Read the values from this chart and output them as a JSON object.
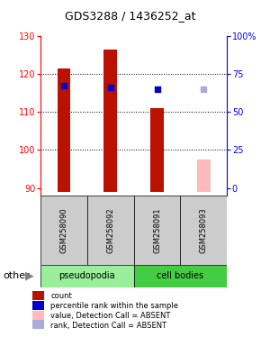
{
  "title": "GDS3288 / 1436252_at",
  "ylim": [
    88,
    130
  ],
  "yticks": [
    90,
    100,
    110,
    120,
    130
  ],
  "y2_tick_positions": [
    90,
    100,
    110,
    120,
    130
  ],
  "y2labels": [
    "0",
    "25",
    "50",
    "75",
    "100%"
  ],
  "samples": [
    "GSM258090",
    "GSM258092",
    "GSM258091",
    "GSM258093"
  ],
  "bar_values": [
    121.5,
    126.5,
    111.0,
    null
  ],
  "bar_color_present": "#bb1100",
  "bar_color_absent": "#ffbbbb",
  "absent_bar_value": 97.5,
  "dot_y_present": [
    117.0,
    116.5,
    116.0,
    null
  ],
  "dot_y_absent": [
    null,
    null,
    null,
    116.0
  ],
  "dot_color_present": "#0000cc",
  "dot_color_absent": "#aaaadd",
  "base": 89.0,
  "bar_width": 0.28,
  "x_positions": [
    0.5,
    1.5,
    2.5,
    3.5
  ],
  "xlim": [
    0,
    4
  ],
  "legend_items": [
    {
      "color": "#bb1100",
      "label": "count"
    },
    {
      "color": "#0000cc",
      "label": "percentile rank within the sample"
    },
    {
      "color": "#ffbbbb",
      "label": "value, Detection Call = ABSENT"
    },
    {
      "color": "#aaaadd",
      "label": "rank, Detection Call = ABSENT"
    }
  ],
  "pseudopodia_color": "#99ee99",
  "cell_bodies_color": "#44cc44",
  "label_bg": "#cccccc",
  "plot_bg": "#ffffff",
  "title_fontsize": 9,
  "tick_fontsize": 7,
  "sample_fontsize": 6,
  "legend_fontsize": 6,
  "group_fontsize": 7,
  "other_fontsize": 8
}
